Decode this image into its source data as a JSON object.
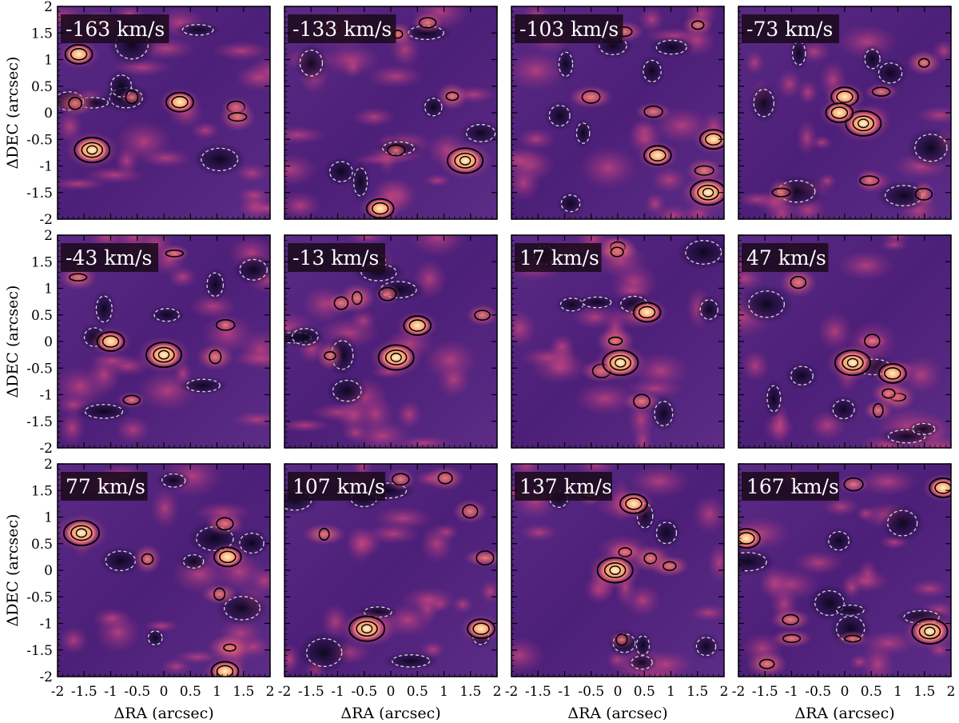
{
  "chart_data": {
    "type": "heatmap",
    "xlabel": "ΔRA (arcsec)",
    "ylabel": "ΔDEC (arcsec)",
    "xlim": [
      -2,
      2
    ],
    "ylim": [
      -2,
      2
    ],
    "x_ticks": [
      "-2",
      "-1.5",
      "-1",
      "-0.5",
      "0",
      "0.5",
      "1",
      "1.5",
      "2"
    ],
    "y_ticks": [
      "-2",
      "-1.5",
      "-1",
      "-0.5",
      "0",
      "0.5",
      "1",
      "1.5",
      "2"
    ],
    "colormap": "magma",
    "contours": {
      "positive": "black solid",
      "negative": "white dashed"
    },
    "panels": [
      {
        "label": "-163 km/s",
        "emission_peaks": [
          {
            "x": -1.35,
            "y": -0.7
          },
          {
            "x": -1.6,
            "y": 1.1
          },
          {
            "x": 0.3,
            "y": 0.2
          }
        ]
      },
      {
        "label": "-133 km/s",
        "emission_peaks": [
          {
            "x": 1.4,
            "y": -0.9
          },
          {
            "x": -0.2,
            "y": -1.8
          }
        ]
      },
      {
        "label": "-103 km/s",
        "emission_peaks": [
          {
            "x": 1.7,
            "y": -1.5
          },
          {
            "x": 1.8,
            "y": -0.5
          },
          {
            "x": 0.75,
            "y": -0.8
          }
        ]
      },
      {
        "label": "-73 km/s",
        "emission_peaks": [
          {
            "x": 0.35,
            "y": -0.2
          },
          {
            "x": 0.0,
            "y": 0.3
          },
          {
            "x": -0.1,
            "y": 0.0
          }
        ]
      },
      {
        "label": "-43 km/s",
        "emission_peaks": [
          {
            "x": 0.0,
            "y": -0.25
          },
          {
            "x": -1.0,
            "y": 0.0
          }
        ]
      },
      {
        "label": "-13 km/s",
        "emission_peaks": [
          {
            "x": 0.1,
            "y": -0.3
          },
          {
            "x": 0.5,
            "y": 0.3
          }
        ]
      },
      {
        "label": "17 km/s",
        "emission_peaks": [
          {
            "x": 0.05,
            "y": -0.4
          },
          {
            "x": 0.55,
            "y": 0.55
          }
        ]
      },
      {
        "label": "47 km/s",
        "emission_peaks": [
          {
            "x": 0.15,
            "y": -0.4
          },
          {
            "x": 0.9,
            "y": -0.6
          }
        ]
      },
      {
        "label": "77 km/s",
        "emission_peaks": [
          {
            "x": -1.55,
            "y": 0.7
          },
          {
            "x": 1.15,
            "y": -1.9
          },
          {
            "x": 1.2,
            "y": 0.25
          }
        ]
      },
      {
        "label": "107 km/s",
        "emission_peaks": [
          {
            "x": -0.45,
            "y": -1.1
          },
          {
            "x": 1.7,
            "y": -1.1
          }
        ]
      },
      {
        "label": "137 km/s",
        "emission_peaks": [
          {
            "x": -0.05,
            "y": 0.0
          },
          {
            "x": 0.3,
            "y": 1.25
          }
        ]
      },
      {
        "label": "167 km/s",
        "emission_peaks": [
          {
            "x": 1.6,
            "y": -1.15
          },
          {
            "x": -1.85,
            "y": 0.6
          },
          {
            "x": 1.85,
            "y": 1.55
          }
        ]
      }
    ]
  }
}
